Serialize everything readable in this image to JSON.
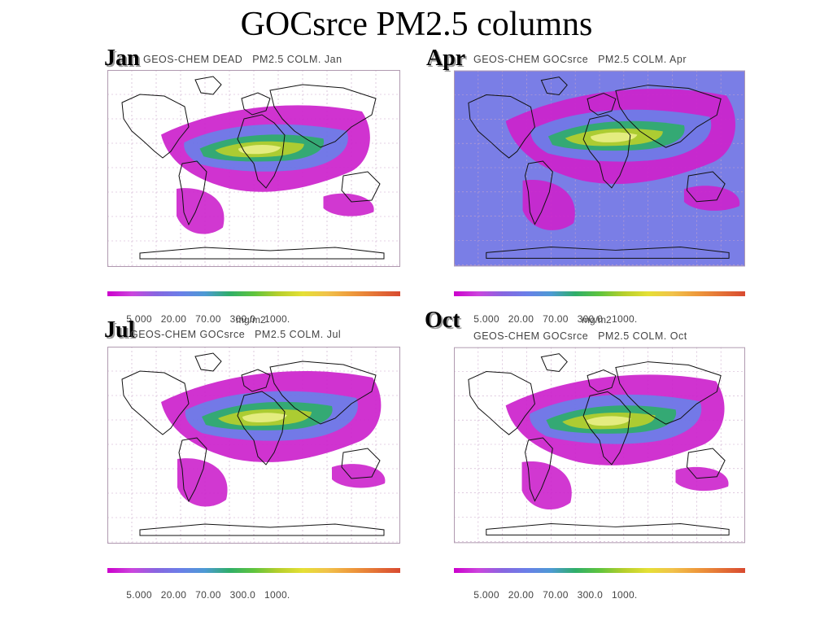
{
  "title": "GOCsrce PM2.5 columns",
  "colorbar": {
    "ticks": [
      "5.000",
      "20.00",
      "70.00",
      "300.0",
      "1000."
    ],
    "unit": "mg/m2",
    "colors": [
      "#cc00cc",
      "#cc44dd",
      "#8866e0",
      "#6a7fe8",
      "#4d9ad4",
      "#2fae6a",
      "#5fc43e",
      "#b6cf2c",
      "#e5e035",
      "#f1c24a",
      "#ee9a3c",
      "#e47236",
      "#d84a30"
    ]
  },
  "panels": [
    {
      "month": "Jan",
      "plot_title": "GEOS-CHEM DEAD   PM2.5 COLM. Jan",
      "show_unit": true,
      "colors": {
        "background": "#ffffff",
        "low": "#cc22cc",
        "mid": "#6a7fe8",
        "midhigh": "#2fae6a",
        "high": "#b6cf2c",
        "peak": "#e8ef86"
      }
    },
    {
      "month": "Apr",
      "plot_title": "GEOS-CHEM GOCsrce   PM2.5 COLM. Apr",
      "show_unit": true,
      "colors": {
        "background": "#7a7ee6",
        "low": "#cc22cc",
        "mid": "#6a7fe8",
        "midhigh": "#2fae6a",
        "high": "#b6cf2c",
        "peak": "#e8ef86"
      }
    },
    {
      "month": "Jul",
      "plot_title": "GEOS-CHEM GOCsrce   PM2.5 COLM. Jul",
      "show_unit": false,
      "colors": {
        "background": "#ffffff",
        "low": "#cc22cc",
        "mid": "#6a7fe8",
        "midhigh": "#2fae6a",
        "high": "#b6cf2c",
        "peak": "#e8ef86"
      }
    },
    {
      "month": "Oct",
      "plot_title": "GEOS-CHEM GOCsrce   PM2.5 COLM. Oct",
      "show_unit": false,
      "colors": {
        "background": "#ffffff",
        "low": "#cc22cc",
        "mid": "#6a7fe8",
        "midhigh": "#2fae6a",
        "high": "#b6cf2c",
        "peak": "#e8ef86"
      }
    }
  ]
}
